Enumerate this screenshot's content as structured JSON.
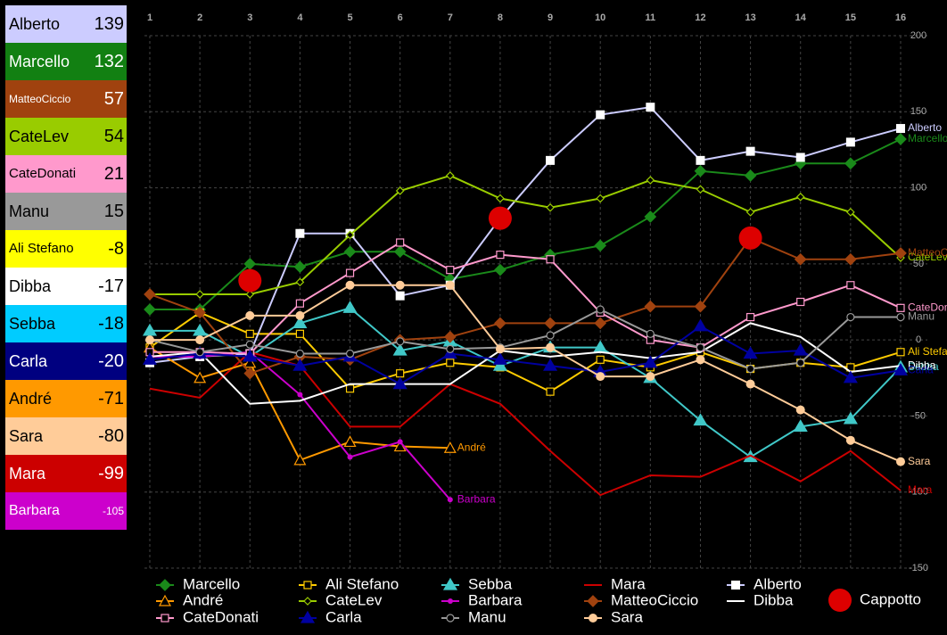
{
  "scoreboard": [
    {
      "name": "Alberto",
      "score": 139,
      "color": "#ccccff",
      "text_color": "#000000"
    },
    {
      "name": "Marcello",
      "score": 132,
      "color": "#128012",
      "text_color": "#ffffff"
    },
    {
      "name": "MatteoCiccio",
      "score": 57,
      "color": "#a0420f",
      "text_color": "#ffffff"
    },
    {
      "name": "CateLev",
      "score": 54,
      "color": "#99cc00",
      "text_color": "#000000"
    },
    {
      "name": "CateDonati",
      "score": 21,
      "color": "#ff99cc",
      "text_color": "#000000"
    },
    {
      "name": "Manu",
      "score": 15,
      "color": "#999999",
      "text_color": "#000000"
    },
    {
      "name": "Ali Stefano",
      "score": -8,
      "color": "#ffff00",
      "text_color": "#000000"
    },
    {
      "name": "Dibba",
      "score": -17,
      "color": "#ffffff",
      "text_color": "#000000"
    },
    {
      "name": "Sebba",
      "score": -18,
      "color": "#00ccff",
      "text_color": "#000000"
    },
    {
      "name": "Carla",
      "score": -20,
      "color": "#000080",
      "text_color": "#ffffff"
    },
    {
      "name": "André",
      "score": -71,
      "color": "#ff9900",
      "text_color": "#000000"
    },
    {
      "name": "Sara",
      "score": -80,
      "color": "#ffcc99",
      "text_color": "#000000"
    },
    {
      "name": "Mara",
      "score": -99,
      "color": "#cc0000",
      "text_color": "#ffffff"
    },
    {
      "name": "Barbara",
      "score": -105,
      "color": "#cc00cc",
      "text_color": "#ffffff"
    }
  ],
  "chart_data": {
    "type": "line",
    "x": [
      1,
      2,
      3,
      4,
      5,
      6,
      7,
      8,
      9,
      10,
      11,
      12,
      13,
      14,
      15,
      16
    ],
    "xlim": [
      1,
      16
    ],
    "xticks": [
      1,
      2,
      3,
      4,
      5,
      6,
      7,
      8,
      9,
      10,
      11,
      12,
      13,
      14,
      15,
      16
    ],
    "ylim": [
      -150,
      200
    ],
    "yticks": [
      -150,
      -100,
      -50,
      0,
      50,
      100,
      150,
      200
    ],
    "grid": true,
    "series": [
      {
        "name": "Marcello",
        "color": "#1a8a1a",
        "marker": "diamond",
        "values": [
          20,
          20,
          50,
          48,
          58,
          58,
          40,
          46,
          56,
          62,
          81,
          111,
          108,
          116,
          116,
          132
        ]
      },
      {
        "name": "Ali Stefano",
        "color": "#ffcc00",
        "marker": "square-open",
        "values": [
          -5,
          18,
          4,
          4,
          -32,
          -22,
          -15,
          -18,
          -34,
          -13,
          -18,
          -8,
          -19,
          -15,
          -18,
          -8
        ]
      },
      {
        "name": "Sebba",
        "color": "#40c8c8",
        "marker": "triangle",
        "values": [
          6,
          6,
          -11,
          11,
          21,
          -7,
          -1,
          -17,
          -5,
          -5,
          -25,
          -53,
          -77,
          -57,
          -52,
          -18
        ]
      },
      {
        "name": "Mara",
        "color": "#cc0000",
        "marker": "none",
        "values": [
          -32,
          -38,
          -8,
          -17,
          -57,
          -57,
          -29,
          -42,
          -73,
          -102,
          -89,
          -90,
          -76,
          -93,
          -73,
          -99
        ]
      },
      {
        "name": "Alberto",
        "color": "#ccccff",
        "marker": "square",
        "marker_color": "#ffffff",
        "values": [
          -15,
          -11,
          -9,
          70,
          70,
          29,
          36,
          80,
          118,
          148,
          153,
          118,
          124,
          120,
          130,
          139
        ]
      },
      {
        "name": "André",
        "color": "#ff9900",
        "marker": "triangle-open",
        "values": [
          -5,
          -25,
          -15,
          -79,
          -67,
          -70,
          -71,
          null,
          null,
          null,
          null,
          null,
          null,
          null,
          null,
          null
        ]
      },
      {
        "name": "CateLev",
        "color": "#99cc00",
        "marker": "diamond-small",
        "values": [
          30,
          30,
          30,
          38,
          69,
          98,
          108,
          93,
          87,
          93,
          105,
          99,
          84,
          94,
          84,
          54
        ]
      },
      {
        "name": "Barbara",
        "color": "#cc00cc",
        "marker": "dot",
        "values": [
          -11,
          -11,
          -8,
          -36,
          -77,
          -67,
          -105,
          null,
          null,
          null,
          null,
          null,
          null,
          null,
          null,
          null
        ]
      },
      {
        "name": "MatteoCiccio",
        "color": "#a0420f",
        "marker": "diamond",
        "values": [
          30,
          18,
          -22,
          -11,
          -13,
          0,
          2,
          11,
          11,
          11,
          22,
          22,
          67,
          53,
          53,
          57
        ]
      },
      {
        "name": "Dibba",
        "color": "#ffffff",
        "marker": "none",
        "values": [
          -11,
          -8,
          -42,
          -40,
          -29,
          -29,
          -29,
          -7,
          -11,
          -8,
          -12,
          -8,
          11,
          2,
          -21,
          -17
        ]
      },
      {
        "name": "CateDonati",
        "color": "#ff99cc",
        "marker": "square-open",
        "values": [
          -8,
          -8,
          -9,
          24,
          44,
          64,
          46,
          56,
          53,
          18,
          0,
          -5,
          15,
          25,
          36,
          21
        ]
      },
      {
        "name": "Carla",
        "color": "#0000a0",
        "marker": "triangle",
        "values": [
          -13,
          -9,
          -11,
          -17,
          -11,
          -29,
          -9,
          -13,
          -17,
          -21,
          -15,
          9,
          -9,
          -7,
          -25,
          -20
        ]
      },
      {
        "name": "Manu",
        "color": "#999999",
        "marker": "circle-open",
        "values": [
          0,
          -8,
          -3,
          -9,
          -9,
          -1,
          -6,
          -5,
          3,
          20,
          4,
          -5,
          -19,
          -15,
          15,
          15
        ]
      },
      {
        "name": "Sara",
        "color": "#ffcc99",
        "marker": "circle",
        "values": [
          0,
          0,
          16,
          16,
          36,
          36,
          36,
          -6,
          -5,
          -24,
          -24,
          -13,
          -29,
          -46,
          -66,
          -80
        ]
      }
    ],
    "markers": {
      "name": "Cappotto",
      "color": "#dd0000",
      "x": [
        3,
        8,
        13
      ],
      "values": [
        39,
        80,
        67
      ]
    }
  }
}
